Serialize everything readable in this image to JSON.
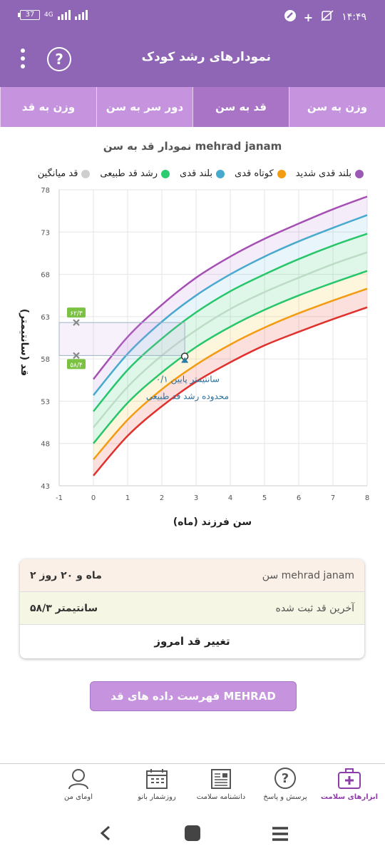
{
  "status_bar": {
    "time": "۱۴:۴۹",
    "battery": "37",
    "network": "4G"
  },
  "app_bar": {
    "title": "نمودارهای رشد کودک"
  },
  "tabs": [
    {
      "label": "وزن به سن",
      "active": false
    },
    {
      "label": "قد به سن",
      "active": true
    },
    {
      "label": "دور سر به سن",
      "active": false
    },
    {
      "label": "وزن به قد",
      "active": false
    }
  ],
  "chart_title": "نمودار قد به سن mehrad janam",
  "legend": [
    {
      "label": "بلند قدی شدید",
      "color": "#9b59b6"
    },
    {
      "label": "کوتاه قدی",
      "color": "#f39c12"
    },
    {
      "label": "بلند قدی",
      "color": "#48a9cf"
    },
    {
      "label": "رشد قد طبیعی",
      "color": "#2ecc71"
    },
    {
      "label": "قد میانگین",
      "color": "#cfcfcf"
    }
  ],
  "chart_data": {
    "type": "line",
    "xlabel": "سن فرزند (ماه)",
    "ylabel": "قد (سانتیمتر)",
    "xlim": [
      -1,
      8
    ],
    "ylim": [
      43,
      78
    ],
    "xticks": [
      -1,
      0,
      1,
      2,
      3,
      4,
      5,
      6,
      7,
      8
    ],
    "yticks": [
      43,
      48,
      53,
      58,
      63,
      68,
      73,
      78
    ],
    "x": [
      0,
      1,
      2,
      3,
      4,
      5,
      6,
      7,
      8
    ],
    "series": [
      {
        "key": "p97",
        "color": "#a54fb5",
        "values": [
          55.6,
          60.6,
          64.4,
          67.6,
          70.1,
          72.2,
          74.0,
          75.7,
          77.2
        ]
      },
      {
        "key": "p85",
        "color": "#48a9cf",
        "values": [
          53.7,
          58.6,
          62.4,
          65.5,
          68.0,
          70.1,
          71.9,
          73.5,
          75.0
        ]
      },
      {
        "key": "p50u",
        "color": "#27c66a",
        "values": [
          51.8,
          56.7,
          60.4,
          63.5,
          66.0,
          68.0,
          69.8,
          71.4,
          72.8
        ]
      },
      {
        "key": "median",
        "color": "#bcdcc6",
        "values": [
          49.9,
          54.7,
          58.4,
          61.4,
          63.9,
          65.9,
          67.6,
          69.2,
          70.6
        ]
      },
      {
        "key": "p50l",
        "color": "#27c66a",
        "values": [
          48.0,
          52.8,
          56.4,
          59.4,
          61.8,
          63.8,
          65.5,
          67.0,
          68.4
        ]
      },
      {
        "key": "p15",
        "color": "#f39c12",
        "values": [
          46.1,
          50.8,
          54.4,
          57.3,
          59.7,
          61.7,
          63.4,
          64.9,
          66.3
        ]
      },
      {
        "key": "p3",
        "color": "#e0312d",
        "values": [
          44.2,
          48.9,
          52.4,
          55.3,
          57.6,
          59.6,
          61.2,
          62.7,
          64.1
        ]
      }
    ],
    "child_point": {
      "x": 2.67,
      "y": 58.3
    },
    "range_marks": {
      "x": -0.5,
      "upper": 62.3,
      "lower": 58.4,
      "upper_label": "۶۲/۳",
      "lower_label": "۵۸/۴"
    },
    "annotation": {
      "line1": "۰/۱ سانتیمتر پایین",
      "line2": "محدوده رشد قد طبیعی"
    }
  },
  "info_card": {
    "age_label": "سن mehrad janam",
    "age_value": "۲ ماه و ۲۰ روز",
    "height_label": "آخرین قد ثبت شده",
    "height_value": "۵۸/۳ سانتیمتر",
    "change_button": "تغییر قد امروز"
  },
  "list_button": "فهرست داده های قد MEHRAD JANAM",
  "bottom_nav": [
    {
      "label": "ابزارهای سلامت",
      "icon": "medical-kit-icon",
      "active": true
    },
    {
      "label": "پرسش و پاسخ",
      "icon": "question-bubble-icon",
      "active": false
    },
    {
      "label": "دانشنامه سلامت",
      "icon": "newspaper-icon",
      "active": false
    },
    {
      "label": "روزشمار بانو",
      "icon": "calendar-icon",
      "active": false
    },
    {
      "label": "اومای من",
      "icon": "user-avatar-icon",
      "active": false
    }
  ]
}
